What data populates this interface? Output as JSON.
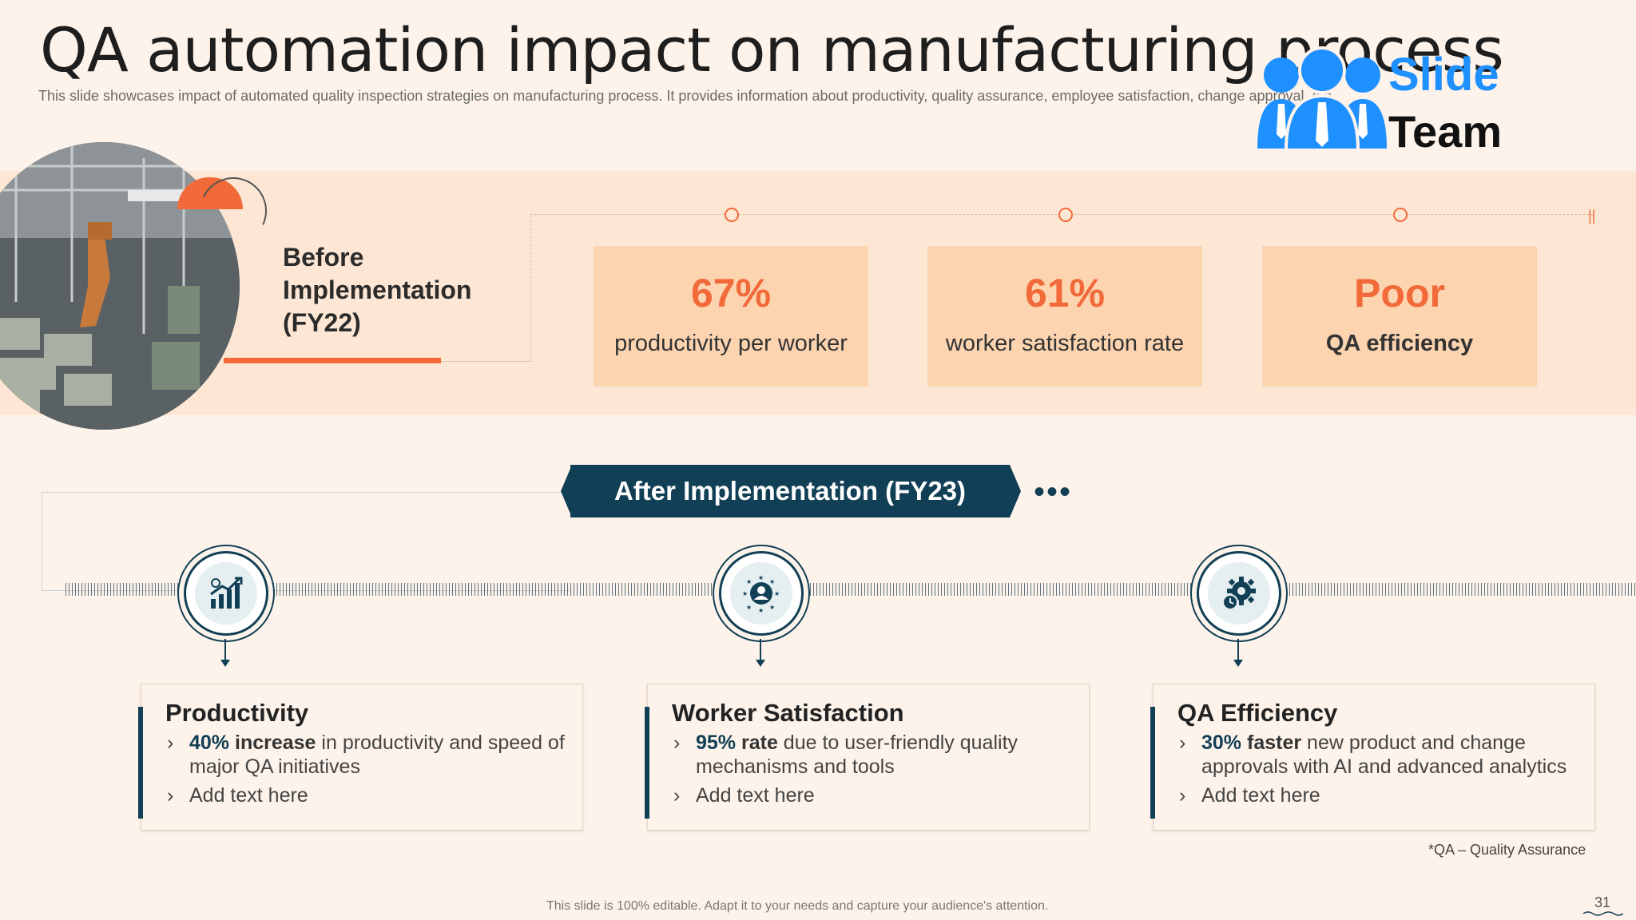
{
  "title": "QA automation impact on manufacturing process",
  "subtitle": "This slide showcases impact of automated quality inspection strategies on manufacturing process. It provides information about productivity, quality assurance, employee satisfaction, change approval, etc.",
  "logo": {
    "line1": "Slide",
    "line2": "Team"
  },
  "before": {
    "heading_line1": "Before",
    "heading_line2": "Implementation",
    "heading_line3": "(FY22)",
    "metrics": [
      {
        "value": "67%",
        "label": "productivity per worker"
      },
      {
        "value": "61%",
        "label": "worker satisfaction rate"
      },
      {
        "value": "Poor",
        "label": "QA efficiency"
      }
    ]
  },
  "after": {
    "heading": "After Implementation  (FY23)",
    "dots": "•••",
    "cards": [
      {
        "title": "Productivity",
        "icon": "growth-chart-icon",
        "bullets": [
          {
            "highlight": "40%",
            "strong": " increase",
            "text": " in productivity  and speed of major QA initiatives"
          },
          {
            "highlight": "",
            "strong": "",
            "text": "Add text here"
          }
        ]
      },
      {
        "title": "Worker Satisfaction",
        "icon": "employee-stars-icon",
        "bullets": [
          {
            "highlight": "95%",
            "strong": " rate",
            "text": " due to user-friendly  quality mechanisms and tools"
          },
          {
            "highlight": "",
            "strong": "",
            "text": "Add text here"
          }
        ]
      },
      {
        "title": "QA Efficiency",
        "icon": "gear-clock-icon",
        "bullets": [
          {
            "highlight": "30%",
            "strong": " faster",
            "text": " new product and change approvals with AI and advanced analytics"
          },
          {
            "highlight": "",
            "strong": "",
            "text": "Add text here"
          }
        ]
      }
    ]
  },
  "footnote": "*QA – Quality Assurance",
  "footer": "This slide is 100% editable. Adapt it to your needs and capture your audience's attention.",
  "page_number": "31",
  "colors": {
    "accent": "#f26a3a",
    "navy": "#113f55",
    "background": "#fdf3ea",
    "band": "#fde7d4",
    "metric_box": "#fcd4b0"
  }
}
